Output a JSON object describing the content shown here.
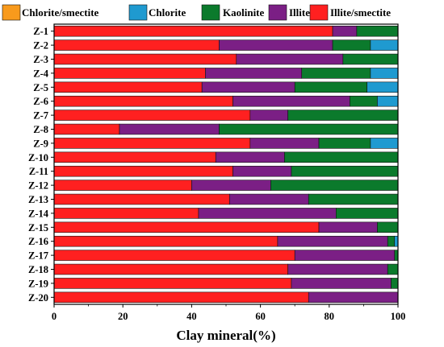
{
  "chart_data": {
    "type": "bar",
    "orientation": "horizontal",
    "stacked": true,
    "xlabel": "Clay mineral(%)",
    "ylabel": "",
    "xlim": [
      0,
      100
    ],
    "xticks": [
      "0",
      "20",
      "40",
      "60",
      "80",
      "100"
    ],
    "grid": false,
    "legend_position": "top",
    "categories": [
      "Z-1",
      "Z-2",
      "Z-3",
      "Z-4",
      "Z-5",
      "Z-6",
      "Z-7",
      "Z-8",
      "Z-9",
      "Z-10",
      "Z-11",
      "Z-12",
      "Z-13",
      "Z-14",
      "Z-15",
      "Z-16",
      "Z-17",
      "Z-18",
      "Z-19",
      "Z-20"
    ],
    "series": [
      {
        "name": "Illite/smectite",
        "color": "#ff2020",
        "values": [
          81,
          48,
          53,
          44,
          43,
          52,
          57,
          19,
          57,
          47,
          52,
          40,
          51,
          42,
          77,
          65,
          70,
          68,
          69,
          74
        ]
      },
      {
        "name": "Illite",
        "color": "#7b1f85",
        "values": [
          7,
          33,
          31,
          28,
          27,
          34,
          11,
          29,
          20,
          20,
          17,
          23,
          23,
          40,
          17,
          32,
          29,
          29,
          29,
          26
        ]
      },
      {
        "name": "Kaolinite",
        "color": "#0b7a2c",
        "values": [
          12,
          11,
          16,
          20,
          21,
          8,
          32,
          52,
          15,
          33,
          31,
          37,
          26,
          18,
          6,
          2,
          1,
          3,
          2,
          0
        ]
      },
      {
        "name": "Chlorite",
        "color": "#1f9ad0",
        "values": [
          0,
          8,
          0,
          8,
          9,
          6,
          0,
          0,
          8,
          0,
          0,
          0,
          0,
          0,
          0,
          1,
          0,
          0,
          0,
          0
        ]
      },
      {
        "name": "Chlorite/smectite",
        "color": "#f89a1c",
        "values": [
          0,
          0,
          0,
          0,
          0,
          0,
          0,
          0,
          0,
          0,
          0,
          0,
          0,
          0,
          0,
          0,
          0,
          0,
          0,
          0
        ]
      }
    ]
  },
  "legend_order": [
    "Chlorite/smectite",
    "Chlorite",
    "Kaolinite",
    "Illite",
    "Illite/smectite"
  ]
}
